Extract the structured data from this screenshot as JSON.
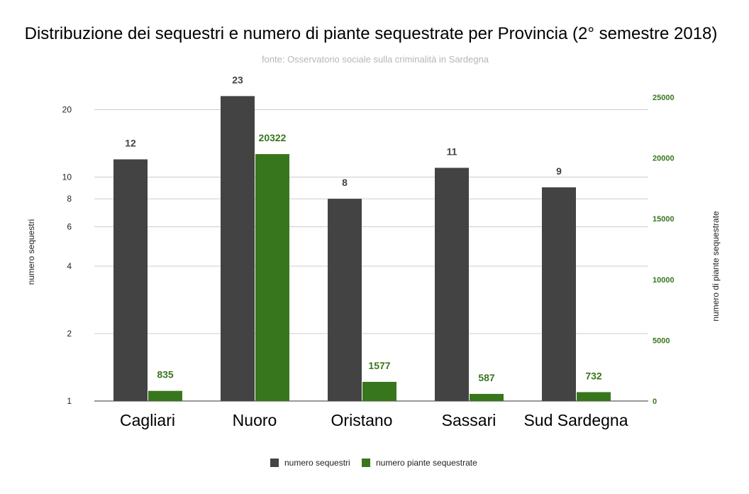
{
  "chart_data": {
    "type": "bar",
    "title": "Distribuzione dei sequestri e numero di piante sequestrate per Provincia (2° semestre 2018)",
    "subtitle": "fonte: Osservatorio sociale sulla criminalità in Sardegna",
    "categories": [
      "Cagliari",
      "Nuoro",
      "Oristano",
      "Sassari",
      "Sud Sardegna"
    ],
    "series": [
      {
        "name": "numero sequestri",
        "axis": "left",
        "color": "#434343",
        "values": [
          12,
          23,
          8,
          11,
          9
        ]
      },
      {
        "name": "numero piante sequestrate",
        "axis": "right",
        "color": "#38761d",
        "values": [
          835,
          20322,
          1577,
          587,
          732
        ]
      }
    ],
    "left_axis": {
      "label": "numero sequestri",
      "scale": "log",
      "range": [
        1,
        22.7
      ],
      "ticks": [
        1,
        2,
        4,
        6,
        8,
        10,
        20
      ]
    },
    "right_axis": {
      "label": "numero di piante sequestrate",
      "scale": "linear",
      "range": [
        0,
        25000
      ],
      "ticks": [
        0,
        5000,
        10000,
        15000,
        20000,
        25000
      ],
      "color": "#38761d"
    },
    "grid": true,
    "legend": "bottom"
  }
}
